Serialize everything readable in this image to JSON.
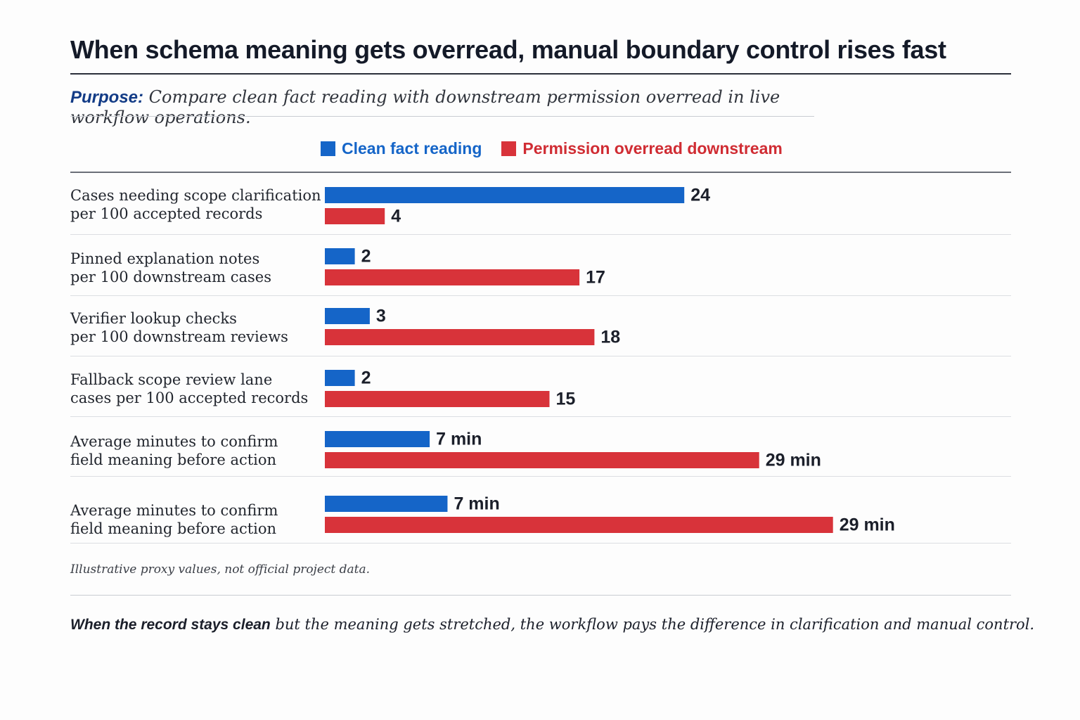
{
  "title": "When schema meaning gets overread, manual boundary control rises fast",
  "purpose": {
    "label": "Purpose:",
    "text": "Compare clean fact reading with downstream permission overread in live workflow operations."
  },
  "colors": {
    "clean": "#1565c8",
    "overread": "#d8333a",
    "clean_text": "#1565c8",
    "overread_text": "#d02c33"
  },
  "chart_data": {
    "type": "bar",
    "orientation": "horizontal",
    "legend": [
      "Clean fact reading",
      "Permission overread downstream"
    ],
    "legend_position": "top-center",
    "grid": false,
    "categories": [
      {
        "line1": "Cases needing scope clarification",
        "line2": "per 100 accepted records"
      },
      {
        "line1": "Pinned explanation notes",
        "line2": "per 100 downstream cases"
      },
      {
        "line1": "Verifier lookup checks",
        "line2": "per 100 downstream reviews"
      },
      {
        "line1": "Fallback scope review lane",
        "line2": "cases per 100 accepted records"
      },
      {
        "line1": "Average minutes to confirm",
        "line2": "field meaning before action"
      },
      {
        "line1": "Average minutes to confirm",
        "line2": "field meaning before action"
      }
    ],
    "series": [
      {
        "name": "Clean fact reading",
        "values": [
          24,
          2,
          3,
          2,
          7,
          7
        ],
        "labels": [
          "24",
          "2",
          "3",
          "2",
          "7 min",
          "7 min"
        ]
      },
      {
        "name": "Permission overread downstream",
        "values": [
          4,
          17,
          18,
          15,
          29,
          29
        ],
        "labels": [
          "4",
          "17",
          "18",
          "15",
          "29 min",
          "29 min"
        ]
      }
    ]
  },
  "footnote": "Illustrative proxy values, not official project data.",
  "conclusion": {
    "bold": "When the record stays clean",
    "rest": " but the meaning gets stretched, the workflow pays the difference in clarification and manual control."
  }
}
